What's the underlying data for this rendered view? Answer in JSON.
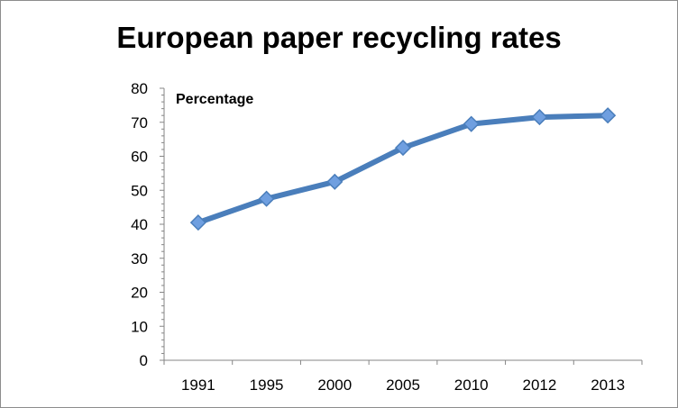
{
  "chart_data": {
    "type": "line",
    "title": "European paper recycling rates",
    "ylabel": "Percentage",
    "xlabel": "",
    "categories": [
      "1991",
      "1995",
      "2000",
      "2005",
      "2010",
      "2012",
      "2013"
    ],
    "series": [
      {
        "values": [
          40.5,
          47.5,
          52.5,
          62.5,
          69.5,
          71.5,
          72.0
        ]
      }
    ],
    "ylim": [
      0,
      80
    ],
    "yticks": [
      0,
      10,
      20,
      30,
      40,
      50,
      60,
      70,
      80
    ],
    "grid": false,
    "legend": "none",
    "colors": {
      "line": "#4a7ebb",
      "marker_fill": "#6f9fe0",
      "marker_stroke": "#4a7ebb",
      "axis": "#868686"
    }
  }
}
